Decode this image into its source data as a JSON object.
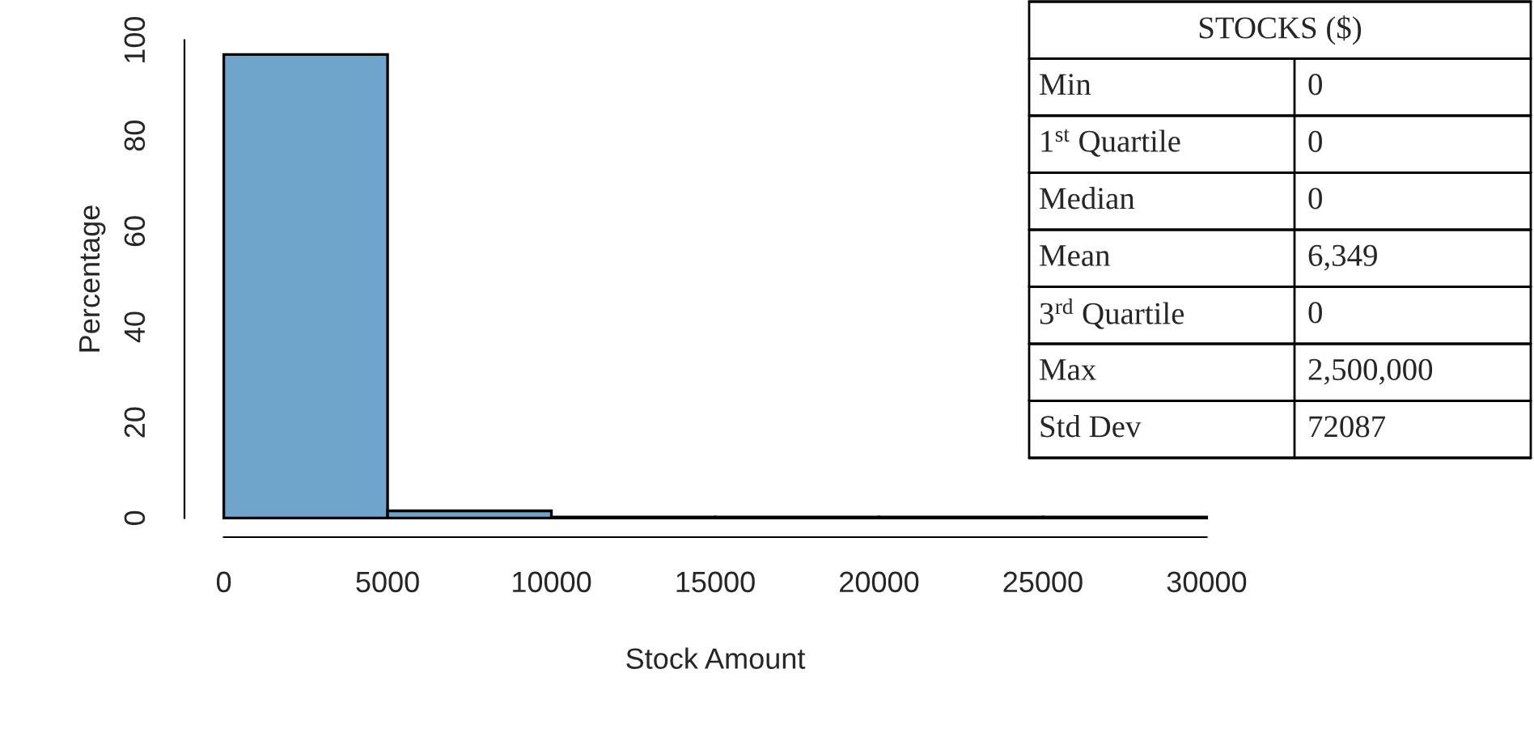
{
  "chart_data": {
    "type": "histogram",
    "xlabel": "Stock Amount",
    "ylabel": "Percentage",
    "bins": [
      0,
      5000,
      10000,
      15000,
      20000,
      25000,
      30000
    ],
    "values": [
      97,
      1.5,
      0.2,
      0.2,
      0.2,
      0.2
    ],
    "color": "#6fa5cb",
    "xlim": [
      0,
      30000
    ],
    "xticks": [
      0,
      5000,
      10000,
      15000,
      20000,
      25000,
      30000
    ],
    "ylim": [
      0,
      100
    ],
    "yticks": [
      0,
      20,
      40,
      60,
      80,
      100
    ],
    "annotations": [
      "STOCKS ($)",
      "Min",
      "0",
      "1$^{st}$ Quartile",
      "0",
      "Median",
      "0",
      "Mean",
      "6,349",
      "3$^{rd}$ Quartile",
      "0",
      "Max",
      "2,500,000",
      "Std Dev",
      "72087"
    ]
  }
}
